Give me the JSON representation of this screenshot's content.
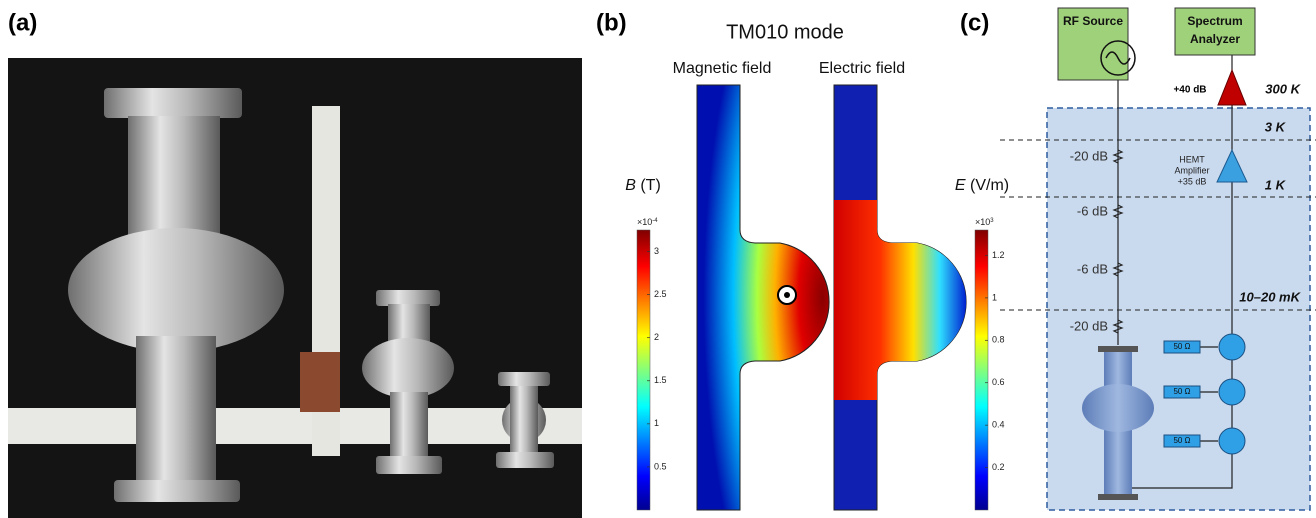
{
  "panels": {
    "a": {
      "label": "(a)"
    },
    "b": {
      "label": "(b)",
      "title": "TM010 mode",
      "magnetic_title": "Magnetic field",
      "electric_title": "Electric field",
      "b_colorbar": {
        "symbol": "B",
        "unit": "(T)",
        "exponent_base": "×10",
        "exponent": "-4",
        "lim": [
          0,
          3.25
        ],
        "ticks": [
          0.5,
          1,
          1.5,
          2,
          2.5,
          3
        ]
      },
      "e_colorbar": {
        "symbol": "E",
        "unit": "(V/m)",
        "exponent_base": "×10",
        "exponent": "3",
        "lim": [
          0,
          1.32
        ],
        "ticks": [
          0.2,
          0.4,
          0.6,
          0.8,
          1,
          1.2
        ]
      }
    },
    "c": {
      "label": "(c)",
      "rf_source": "RF Source",
      "spectrum_analyzer": [
        "Spectrum",
        "Analyzer"
      ],
      "room_gain": "+40 dB",
      "hemt": [
        "HEMT",
        "Amplifier",
        "+35 dB"
      ],
      "temperatures": [
        "300 K",
        "3 K",
        "1 K",
        "10–20 mK"
      ],
      "attenuators": [
        "-20 dB",
        "-6 dB",
        "-6 dB",
        "-20 dB"
      ],
      "terminations": [
        "50 Ω",
        "50 Ω",
        "50 Ω"
      ]
    }
  }
}
